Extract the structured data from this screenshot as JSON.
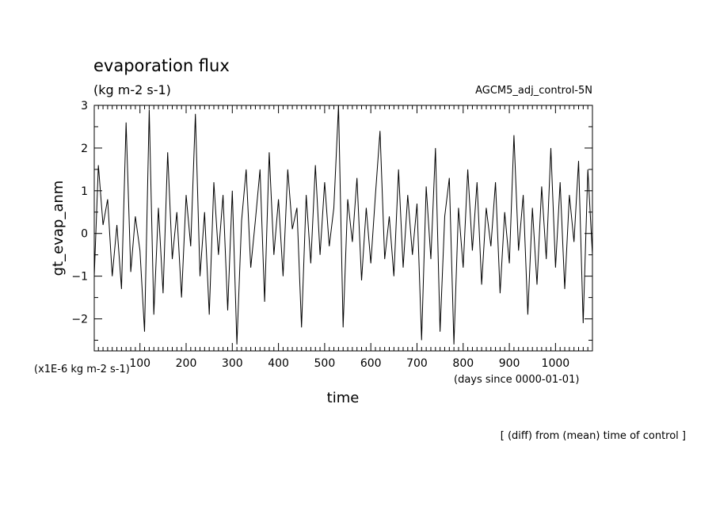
{
  "chart_data": {
    "type": "line",
    "title": "evaporation flux",
    "units": "(kg m-2 s-1)",
    "experiment": "AGCM5_adj_control-5N",
    "ylabel": "gt_evap_anm",
    "xlabel": "time",
    "y_unit_note": "(x1E-6 kg m-2 s-1)",
    "x_unit_note": "(days since 0000-01-01)",
    "footnote": "[ (diff) from (mean) time of control ]",
    "xlim": [
      1,
      1080
    ],
    "ylim": [
      -2.75,
      3
    ],
    "x_ticks": [
      100,
      200,
      300,
      400,
      500,
      600,
      700,
      800,
      900,
      1000
    ],
    "y_ticks": [
      -2,
      -1,
      0,
      1,
      2,
      3
    ],
    "grid": false,
    "series": [
      {
        "x": [
          1,
          10,
          20,
          30,
          40,
          50,
          60,
          70,
          80,
          90,
          100,
          110,
          120,
          130,
          140,
          150,
          160,
          170,
          180,
          190,
          200,
          210,
          220,
          230,
          240,
          250,
          260,
          270,
          280,
          290,
          300,
          310,
          320,
          330,
          340,
          350,
          360,
          370,
          380,
          390,
          400,
          410,
          420,
          430,
          440,
          450,
          460,
          470,
          480,
          490,
          500,
          510,
          520,
          530,
          540,
          550,
          560,
          570,
          580,
          590,
          600,
          610,
          620,
          630,
          640,
          650,
          660,
          670,
          680,
          690,
          700,
          710,
          720,
          730,
          740,
          750,
          760,
          770,
          780,
          790,
          800,
          810,
          820,
          830,
          840,
          850,
          860,
          870,
          880,
          890,
          900,
          910,
          920,
          930,
          940,
          950,
          960,
          970,
          980,
          990,
          1000,
          1010,
          1020,
          1030,
          1040,
          1050,
          1060,
          1070,
          1080
        ],
        "values": [
          -1.0,
          1.6,
          0.2,
          0.8,
          -1.0,
          0.2,
          -1.3,
          2.6,
          -0.9,
          0.4,
          -0.4,
          -2.3,
          2.9,
          -1.9,
          0.6,
          -1.4,
          1.9,
          -0.6,
          0.5,
          -1.5,
          0.9,
          -0.3,
          2.8,
          -1.0,
          0.5,
          -1.9,
          1.2,
          -0.5,
          0.9,
          -1.8,
          1.0,
          -2.6,
          0.3,
          1.5,
          -0.8,
          0.3,
          1.5,
          -1.6,
          1.9,
          -0.5,
          0.8,
          -1.0,
          1.5,
          0.1,
          0.6,
          -2.2,
          0.9,
          -0.7,
          1.6,
          -0.5,
          1.2,
          -0.3,
          0.6,
          3.0,
          -2.2,
          0.8,
          -0.2,
          1.3,
          -1.1,
          0.6,
          -0.7,
          0.9,
          2.4,
          -0.6,
          0.4,
          -1.0,
          1.5,
          -0.8,
          0.9,
          -0.5,
          0.7,
          -2.5,
          1.1,
          -0.6,
          2.0,
          -2.3,
          0.4,
          1.3,
          -2.6,
          0.6,
          -0.8,
          1.5,
          -0.4,
          1.2,
          -1.2,
          0.6,
          -0.3,
          1.2,
          -1.4,
          0.5,
          -0.7,
          2.3,
          -0.4,
          0.9,
          -1.9,
          0.6,
          -1.2,
          1.1,
          -0.6,
          2.0,
          -0.8,
          1.2,
          -1.3,
          0.9,
          -0.2,
          1.7,
          -2.1,
          1.5,
          -0.5
        ]
      }
    ]
  }
}
